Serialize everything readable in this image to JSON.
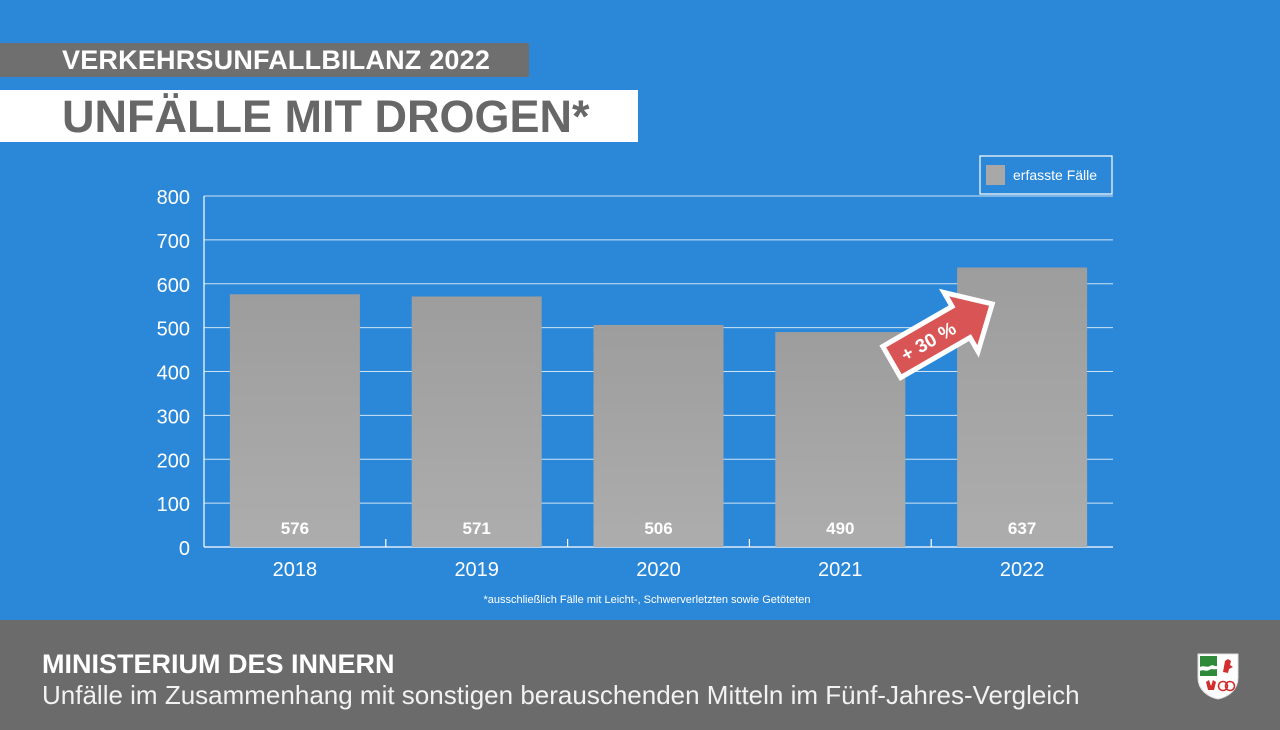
{
  "header": {
    "kicker": "VERKEHRSUNFALLBILANZ 2022",
    "title": "UNFÄLLE MIT DROGEN*"
  },
  "chart_data": {
    "type": "bar",
    "categories": [
      "2018",
      "2019",
      "2020",
      "2021",
      "2022"
    ],
    "series": [
      {
        "name": "erfasste Fälle",
        "values": [
          576,
          571,
          506,
          490,
          637
        ],
        "color": "#a8a8a8"
      }
    ],
    "data_labels": [
      "576",
      "571",
      "506",
      "490",
      "637"
    ],
    "y_ticks": [
      0,
      100,
      200,
      300,
      400,
      500,
      600,
      700,
      800
    ],
    "ylim": [
      0,
      800
    ],
    "grid": true,
    "legend": "top-right",
    "annotation": {
      "text": "+ 30 %",
      "color": "#d95555"
    },
    "footnote": "*ausschließlich Fälle mit Leicht-, Schwerverletzten sowie Getöteten"
  },
  "footer": {
    "ministry": "MINISTERIUM DES INNERN",
    "subtitle": "Unfälle im Zusammenhang mit sonstigen berauschenden Mitteln im Fünf-Jahres-Vergleich",
    "crest_icon": "nrw-coat-of-arms-icon"
  },
  "colors": {
    "background": "#2b88d8",
    "band": "#6f6f6f",
    "bar": "#a8a8a8",
    "accent": "#d95555"
  }
}
